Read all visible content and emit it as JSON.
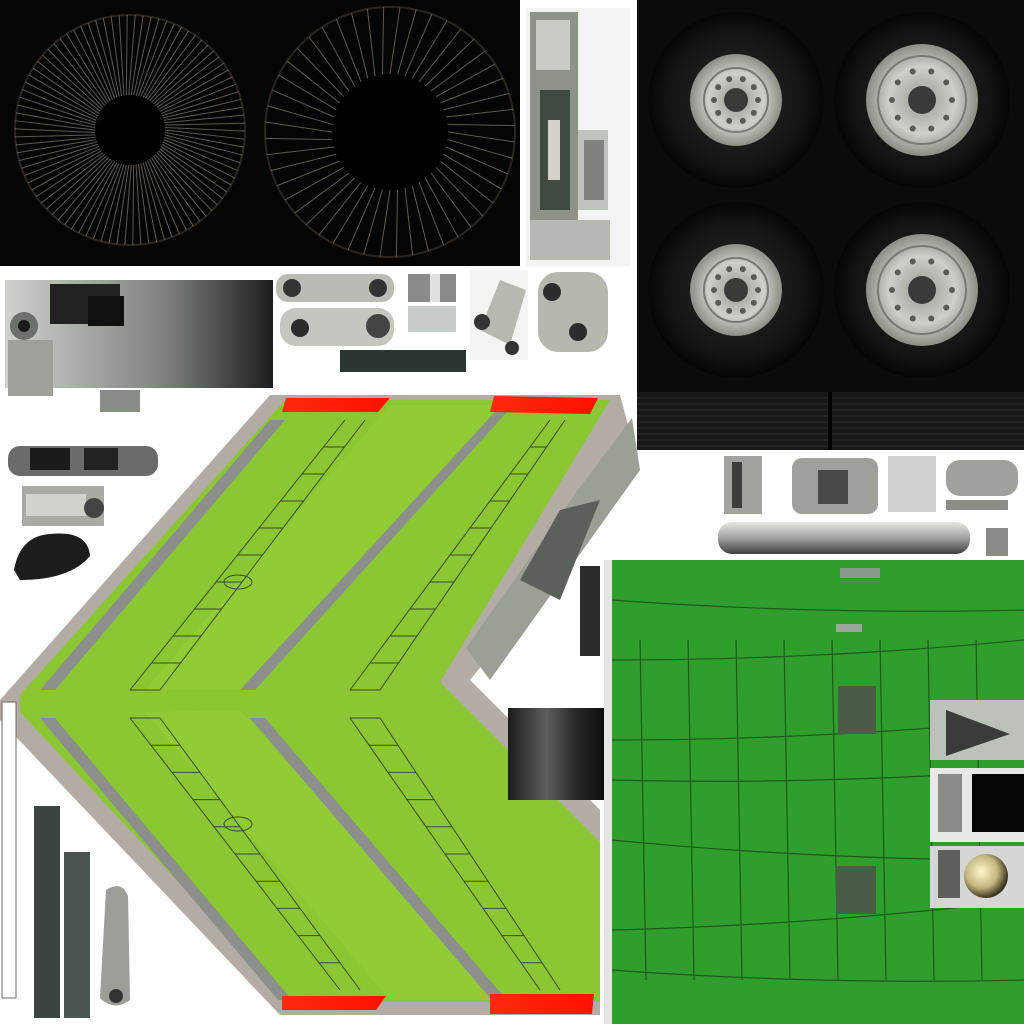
{
  "atlas": {
    "colors": {
      "background": "#ffffff",
      "engine_panel": "#050505",
      "wheel_panel": "#0b0b0b",
      "wing_green": "#8ac732",
      "wing_highlight": "#97d03c",
      "fuselage_green": "#2f9e2c",
      "panel_line": "#3a4a2a",
      "wingtip_red": "#ff1a0a",
      "metal_light": "#c9ccc6",
      "metal_dark": "#5a5e5a",
      "shadow_gray": "#b3aca4",
      "spoke": "#a69c8a"
    },
    "regions": [
      {
        "name": "engine-fan-face-left",
        "icon": "turbofan-icon"
      },
      {
        "name": "engine-fan-face-right",
        "icon": "turbofan-icon"
      },
      {
        "name": "landing-gear-strut-front",
        "icon": "gear-strut-icon"
      },
      {
        "name": "main-wheel-set",
        "icon": "wheel-icon",
        "count": 4
      },
      {
        "name": "gear-leg-sections",
        "icon": "hydraulic-strut-icon"
      },
      {
        "name": "wing-upper-surface",
        "icon": "wing-icon"
      },
      {
        "name": "fuselage-underside",
        "icon": "fuselage-panel-icon"
      },
      {
        "name": "misc-gear-parts",
        "icon": "bracket-icon"
      }
    ]
  }
}
